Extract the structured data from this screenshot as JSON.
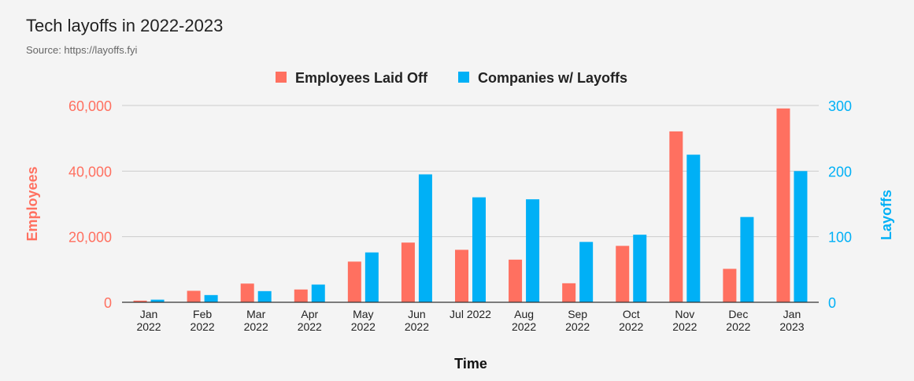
{
  "colors": {
    "employees": "#ff7060",
    "companies": "#00b0f6",
    "grid": "#cccccc",
    "axis": "#333333"
  },
  "chart_data": {
    "type": "bar",
    "title": "Tech layoffs in 2022-2023",
    "subtitle": "Source: https://layoffs.fyi",
    "xlabel": "Time",
    "ylabel_left": "Employees",
    "ylabel_right": "Layoffs",
    "categories": [
      [
        "Jan",
        "2022"
      ],
      [
        "Feb",
        "2022"
      ],
      [
        "Mar",
        "2022"
      ],
      [
        "Apr",
        "2022"
      ],
      [
        "May",
        "2022"
      ],
      [
        "Jun",
        "2022"
      ],
      [
        "Jul 2022"
      ],
      [
        "Aug",
        "2022"
      ],
      [
        "Sep",
        "2022"
      ],
      [
        "Oct",
        "2022"
      ],
      [
        "Nov",
        "2022"
      ],
      [
        "Dec",
        "2022"
      ],
      [
        "Jan",
        "2023"
      ]
    ],
    "ylim_left": [
      0,
      60000
    ],
    "ylim_right": [
      0,
      300
    ],
    "yticks_left": [
      "0",
      "20,000",
      "40,000",
      "60,000"
    ],
    "yticks_right": [
      "0",
      "100",
      "200",
      "300"
    ],
    "legend_position": "top",
    "grid": true,
    "series": [
      {
        "name": "Employees Laid Off",
        "axis": "left",
        "values": [
          500,
          3500,
          5700,
          3900,
          12400,
          18200,
          16000,
          13000,
          5800,
          17200,
          52100,
          10200,
          59100
        ]
      },
      {
        "name": "Companies w/ Layoffs",
        "axis": "right",
        "values": [
          4,
          11,
          17,
          27,
          76,
          195,
          160,
          157,
          92,
          103,
          225,
          130,
          200
        ]
      }
    ]
  }
}
